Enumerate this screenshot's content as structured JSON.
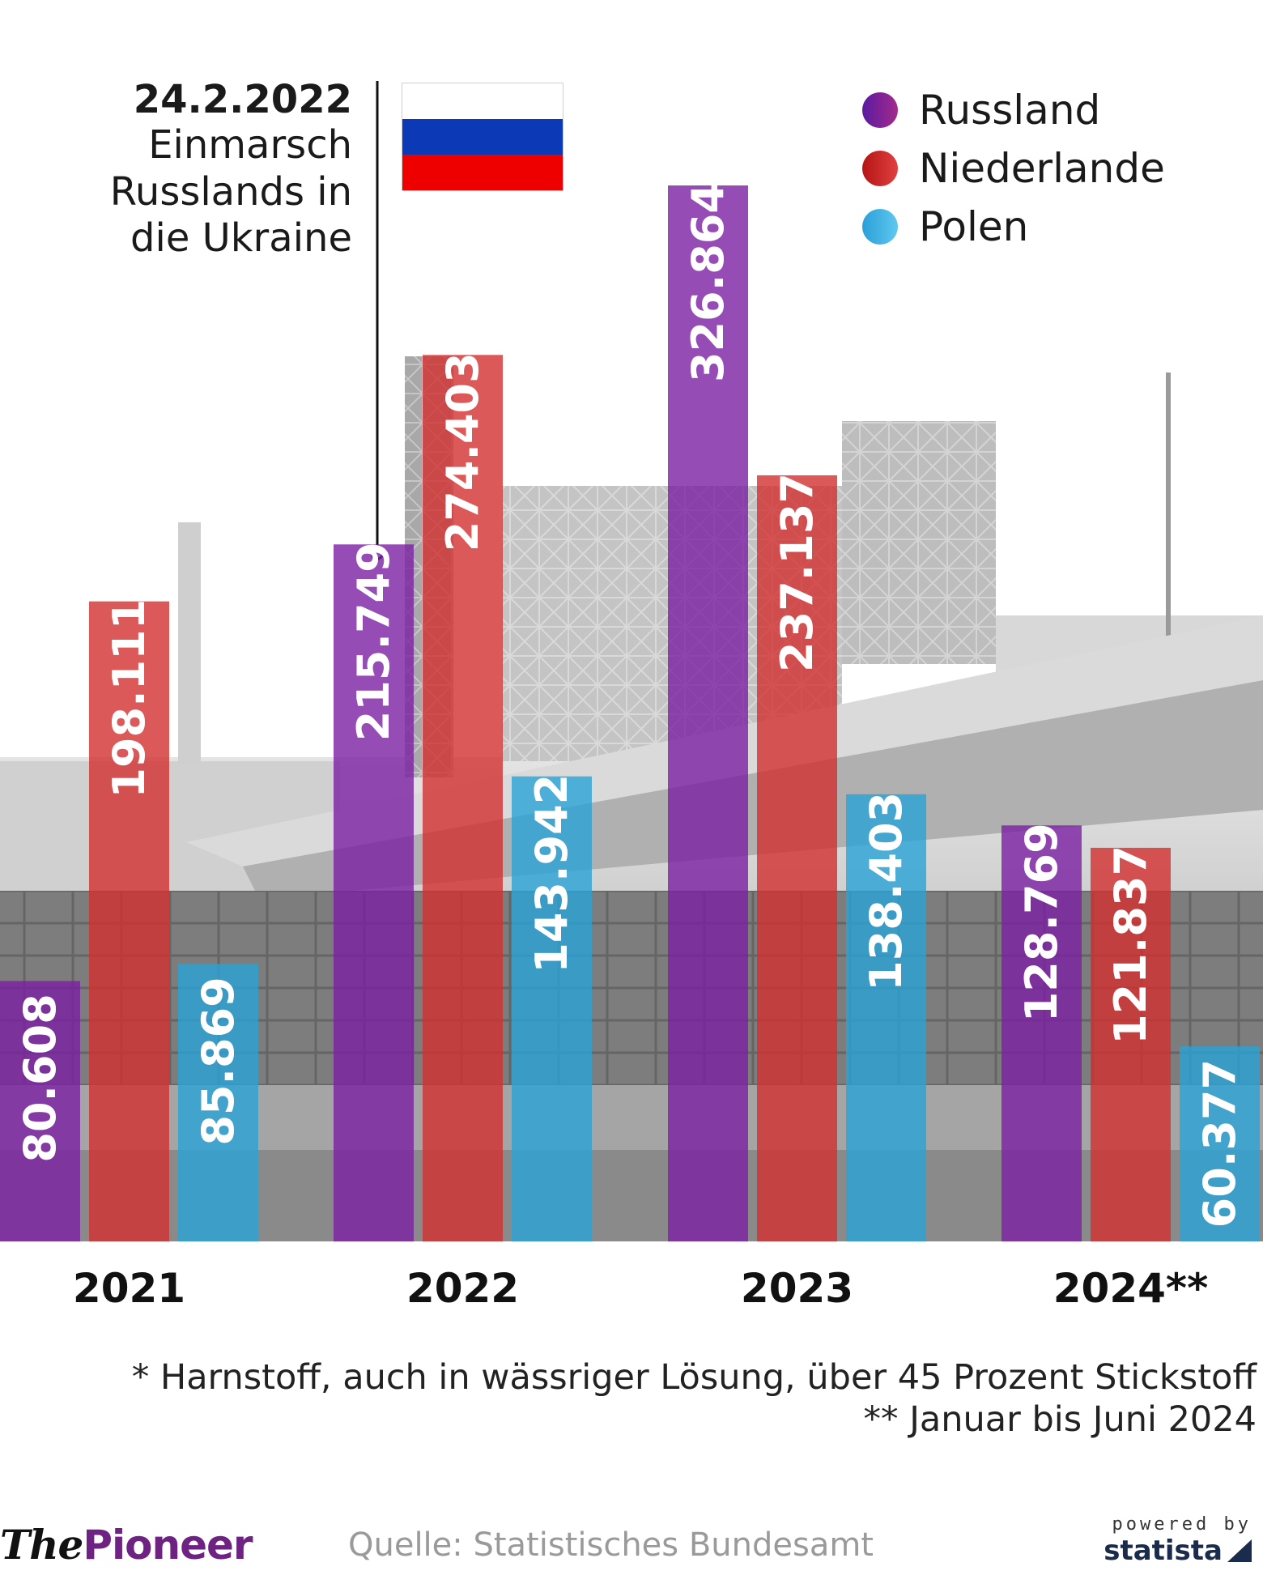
{
  "chart_data": {
    "type": "bar",
    "categories": [
      "2021",
      "2022",
      "2023",
      "2024**"
    ],
    "series": [
      {
        "name": "Russland",
        "color": "#7b1fa2",
        "values": [
          80608,
          215749,
          326864,
          128769
        ],
        "labels": [
          "80.608",
          "215.749",
          "326.864",
          "128.769"
        ]
      },
      {
        "name": "Niederlande",
        "color": "#d32f2f",
        "values": [
          198111,
          274403,
          237137,
          121837
        ],
        "labels": [
          "198.111",
          "274.403",
          "237.137",
          "121.837"
        ]
      },
      {
        "name": "Polen",
        "color": "#29a3d6",
        "values": [
          85869,
          143942,
          138403,
          60377
        ],
        "labels": [
          "85.869",
          "143.942",
          "138.403",
          "60.377"
        ]
      }
    ],
    "ylim": [
      0,
      326864
    ],
    "legend_position": "top-right",
    "grid": false
  },
  "annotation": {
    "date": "24.2.2022",
    "text": "Einmarsch\nRusslands in\ndie Ukraine",
    "flag_colors": [
      "#ffffff",
      "#0c39b5",
      "#ee0000"
    ]
  },
  "legend": [
    {
      "label": "Russland",
      "color_from": "#5a1aa0",
      "color_to": "#a32a8c"
    },
    {
      "label": "Niederlande",
      "color_from": "#b51414",
      "color_to": "#e04040"
    },
    {
      "label": "Polen",
      "color_from": "#2a9fd8",
      "color_to": "#5fc8ef"
    }
  ],
  "footnotes": [
    "* Harnstoff, auch in wässriger Lösung, über 45 Prozent Stickstoff",
    "** Januar bis Juni 2024"
  ],
  "brand": {
    "part1": "The",
    "part2": "Pioneer"
  },
  "source": "Quelle: Statistisches Bundesamt",
  "statista": {
    "powered_by": "powered by",
    "name": "statista"
  }
}
